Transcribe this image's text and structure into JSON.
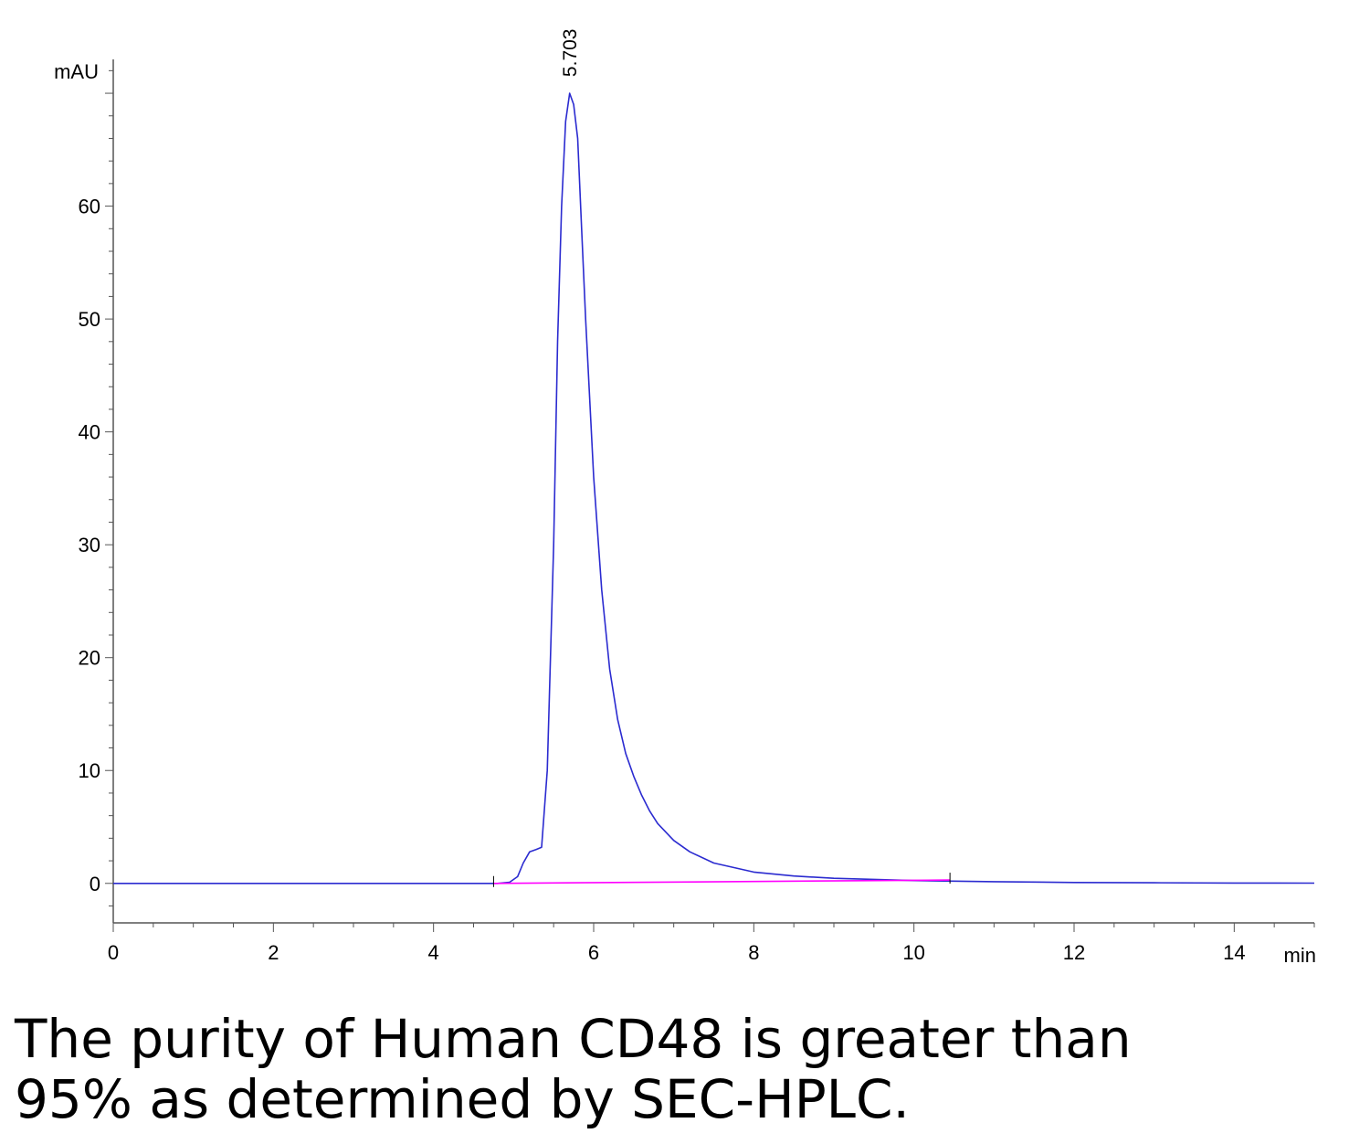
{
  "chart_data": {
    "type": "line",
    "x_unit": "min",
    "y_unit": "mAU",
    "xlim": [
      0,
      15
    ],
    "ylim": [
      -3.5,
      73
    ],
    "x_ticks": [
      "0",
      "2",
      "4",
      "6",
      "8",
      "10",
      "12",
      "14"
    ],
    "y_ticks": [
      "0",
      "10",
      "20",
      "30",
      "40",
      "50",
      "60"
    ],
    "grid": false,
    "legend": "none",
    "series": [
      {
        "color": "#2b2bd0",
        "x": [
          0,
          4.0,
          4.8,
          4.95,
          5.05,
          5.12,
          5.2,
          5.28,
          5.35,
          5.42,
          5.5,
          5.55,
          5.6,
          5.65,
          5.7,
          5.75,
          5.8,
          5.85,
          5.9,
          6.0,
          6.1,
          6.2,
          6.3,
          6.4,
          6.5,
          6.6,
          6.7,
          6.8,
          7.0,
          7.2,
          7.5,
          8.0,
          8.5,
          9.0,
          10.0,
          11.0,
          12.0,
          13.0,
          14.0,
          15.0
        ],
        "y": [
          0,
          0,
          0,
          0.1,
          0.6,
          1.8,
          2.8,
          3.0,
          3.2,
          10,
          30,
          48,
          60,
          67.5,
          70,
          69,
          66,
          58,
          50,
          36,
          26,
          19,
          14.5,
          11.5,
          9.5,
          7.8,
          6.4,
          5.3,
          3.8,
          2.8,
          1.8,
          1.0,
          0.65,
          0.45,
          0.25,
          0.15,
          0.08,
          0.05,
          0.03,
          0.02
        ]
      },
      {
        "color": "#ff00ff",
        "x": [
          4.75,
          10.45
        ],
        "y": [
          0,
          0.3
        ]
      }
    ],
    "annotations": [
      {
        "text": "5.703",
        "x": 5.703,
        "y": 70
      }
    ]
  },
  "caption": {
    "line1": "The purity of Human CD48 is greater than",
    "line2": "95% as determined by SEC-HPLC."
  }
}
